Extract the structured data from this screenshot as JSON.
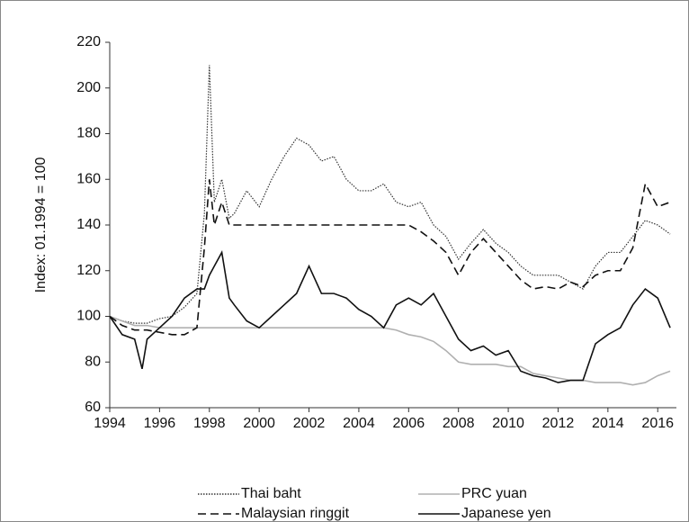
{
  "chart_data": {
    "type": "line",
    "y_label": "Index: 01.1994 = 100",
    "x": [
      1994,
      1994.5,
      1995,
      1995.3,
      1995.5,
      1996,
      1996.5,
      1997,
      1997.5,
      1997.8,
      1998,
      1998.2,
      1998.5,
      1998.8,
      1999,
      1999.5,
      2000,
      2000.5,
      2001,
      2001.5,
      2002,
      2002.5,
      2003,
      2003.5,
      2004,
      2004.5,
      2005,
      2005.5,
      2006,
      2006.5,
      2007,
      2007.5,
      2008,
      2008.5,
      2009,
      2009.5,
      2010,
      2010.5,
      2011,
      2011.5,
      2012,
      2012.5,
      2013,
      2013.5,
      2014,
      2014.5,
      2015,
      2015.5,
      2016,
      2016.5
    ],
    "series": [
      {
        "name": "Thai baht",
        "color": "#333333",
        "dash": "dotted",
        "values": [
          100,
          98,
          97,
          97,
          97,
          99,
          100,
          104,
          110,
          145,
          210,
          150,
          160,
          143,
          145,
          155,
          148,
          160,
          170,
          178,
          175,
          168,
          170,
          160,
          155,
          155,
          158,
          150,
          148,
          150,
          140,
          135,
          125,
          132,
          138,
          132,
          128,
          122,
          118,
          118,
          118,
          115,
          112,
          122,
          128,
          128,
          135,
          142,
          140,
          136
        ]
      },
      {
        "name": "PRC yuan",
        "color": "#b0b0b0",
        "dash": "solid",
        "values": [
          100,
          98,
          96,
          96,
          96,
          95,
          95,
          95,
          95,
          95,
          95,
          95,
          95,
          95,
          95,
          95,
          95,
          95,
          95,
          95,
          95,
          95,
          95,
          95,
          95,
          95,
          95,
          94,
          92,
          91,
          89,
          85,
          80,
          79,
          79,
          79,
          78,
          78,
          75,
          74,
          73,
          72,
          72,
          71,
          71,
          71,
          70,
          71,
          74,
          76
        ]
      },
      {
        "name": "Malaysian ringgit",
        "color": "#111111",
        "dash": "dashed",
        "values": [
          100,
          96,
          94,
          94,
          94,
          93,
          92,
          92,
          95,
          130,
          160,
          140,
          150,
          140,
          140,
          140,
          140,
          140,
          140,
          140,
          140,
          140,
          140,
          140,
          140,
          140,
          140,
          140,
          140,
          137,
          133,
          128,
          118,
          128,
          134,
          128,
          122,
          116,
          112,
          113,
          112,
          115,
          113,
          118,
          120,
          120,
          130,
          158,
          148,
          150
        ]
      },
      {
        "name": "Japanese yen",
        "color": "#111111",
        "dash": "solid",
        "values": [
          100,
          92,
          90,
          77,
          90,
          95,
          100,
          108,
          112,
          112,
          118,
          122,
          128,
          108,
          105,
          98,
          95,
          100,
          105,
          110,
          122,
          110,
          110,
          108,
          103,
          100,
          95,
          105,
          108,
          105,
          110,
          100,
          90,
          85,
          87,
          83,
          85,
          76,
          74,
          73,
          71,
          72,
          72,
          88,
          92,
          95,
          105,
          112,
          108,
          95
        ]
      }
    ],
    "xlim": [
      1994,
      2016.75
    ],
    "xticks": [
      1994,
      1996,
      1998,
      2000,
      2002,
      2004,
      2006,
      2008,
      2010,
      2012,
      2014,
      2016
    ],
    "ylim": [
      60,
      220
    ],
    "yticks": [
      60,
      80,
      100,
      120,
      140,
      160,
      180,
      200,
      220
    ],
    "grid": false
  }
}
